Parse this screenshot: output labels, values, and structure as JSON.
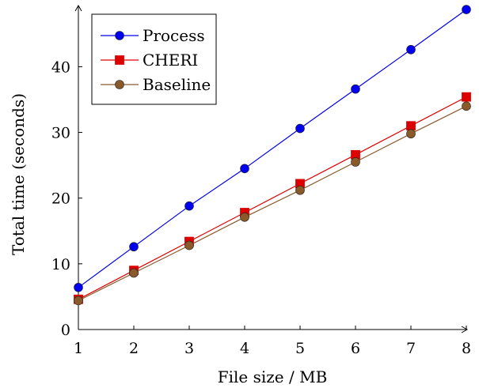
{
  "chart_data": {
    "type": "line",
    "title": "",
    "xlabel": "File size / MB",
    "ylabel": "Total time (seconds)",
    "x": [
      1,
      2,
      3,
      4,
      5,
      6,
      7,
      8
    ],
    "xlim": [
      1,
      8
    ],
    "ylim": [
      0,
      49
    ],
    "xticks": [
      "1",
      "2",
      "3",
      "4",
      "5",
      "6",
      "7",
      "8"
    ],
    "yticks": [
      "0",
      "10",
      "20",
      "30",
      "40"
    ],
    "grid": false,
    "legend_position": "top-left",
    "series": [
      {
        "name": "Process",
        "values": [
          6.4,
          12.6,
          18.8,
          24.5,
          30.6,
          36.6,
          42.6,
          48.7
        ],
        "color": "#0000ee",
        "marker": "circle"
      },
      {
        "name": "CHERI",
        "values": [
          4.6,
          9.0,
          13.4,
          17.8,
          22.2,
          26.6,
          31.0,
          35.4
        ],
        "color": "#dd0000",
        "marker": "square"
      },
      {
        "name": "Baseline",
        "values": [
          4.4,
          8.6,
          12.8,
          17.1,
          21.2,
          25.5,
          29.8,
          34.0
        ],
        "color": "#8b5a2b",
        "marker": "circle"
      }
    ]
  }
}
